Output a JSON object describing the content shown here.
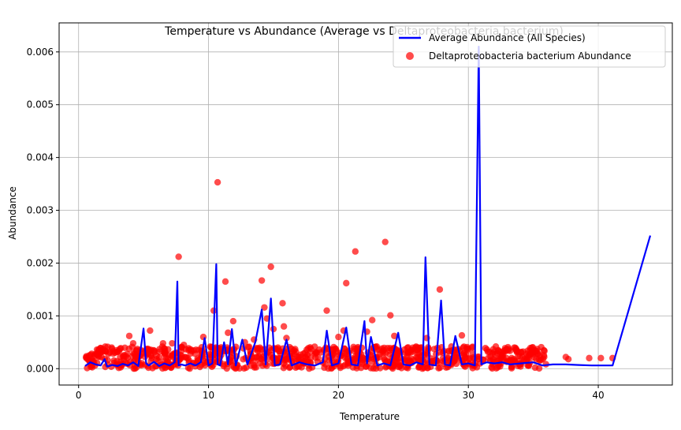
{
  "chart_data": {
    "type": "line+scatter",
    "title": "Temperature vs Abundance (Average vs Deltaproteobacteria bacterium)",
    "xlabel": "Temperature",
    "ylabel": "Abundance",
    "xlim": [
      -1.5,
      45.7
    ],
    "ylim": [
      -0.00031,
      0.00655
    ],
    "xticks": [
      0,
      10,
      20,
      30,
      40
    ],
    "yticks": [
      0.0,
      0.001,
      0.002,
      0.003,
      0.004,
      0.005,
      0.006
    ],
    "ytick_labels": [
      "0.000",
      "0.001",
      "0.002",
      "0.003",
      "0.004",
      "0.005",
      "0.006"
    ],
    "grid": true,
    "legend_position": "top-right",
    "colors": {
      "line": "#0000ff",
      "scatter": "#ff0000",
      "grid": "#b0b0b0"
    },
    "series": [
      {
        "name": "Average Abundance (All Species)",
        "kind": "line",
        "x": [
          0.5,
          0.9,
          1.3,
          1.7,
          2.0,
          2.2,
          2.6,
          3.0,
          3.4,
          3.8,
          4.2,
          4.6,
          5.0,
          5.2,
          5.4,
          5.8,
          6.2,
          6.6,
          7.0,
          7.4,
          7.6,
          7.7,
          7.9,
          8.2,
          8.6,
          9.0,
          9.4,
          9.7,
          10.0,
          10.3,
          10.6,
          10.7,
          10.9,
          11.2,
          11.5,
          11.8,
          12.1,
          12.6,
          13.0,
          13.6,
          14.1,
          14.4,
          14.8,
          15.1,
          15.5,
          16.0,
          16.4,
          17.0,
          17.6,
          18.2,
          18.8,
          19.1,
          19.5,
          20.0,
          20.6,
          21.0,
          21.5,
          22.0,
          22.2,
          22.5,
          23.0,
          23.5,
          24.0,
          24.6,
          25.0,
          25.5,
          26.0,
          26.5,
          26.7,
          27.0,
          27.5,
          27.9,
          28.2,
          28.6,
          29.0,
          29.5,
          30.0,
          30.5,
          30.8,
          31.0,
          31.4,
          32.0,
          32.6,
          33.2,
          34.0,
          35.0,
          35.7,
          36.5,
          37.5,
          38.5,
          39.5,
          41.1,
          44.0
        ],
        "y": [
          5e-05,
          0.00012,
          8e-05,
          6e-05,
          0.00018,
          4e-05,
          7e-05,
          5e-05,
          9e-05,
          6e-05,
          0.00012,
          5e-05,
          0.00076,
          0.0001,
          6e-05,
          0.00013,
          5e-05,
          0.0001,
          6e-05,
          0.00012,
          0.00165,
          6e-05,
          8e-05,
          6e-05,
          0.0001,
          6e-05,
          0.00012,
          0.00058,
          6e-05,
          0.0001,
          0.00198,
          8e-05,
          6e-05,
          0.0005,
          8e-05,
          0.00075,
          6e-05,
          0.00055,
          8e-05,
          0.0005,
          0.00112,
          8e-05,
          0.00133,
          6e-05,
          8e-05,
          0.00055,
          6e-05,
          0.00012,
          8e-05,
          6e-05,
          0.00012,
          0.00072,
          6e-05,
          0.0001,
          0.00078,
          8e-05,
          6e-05,
          0.0009,
          0.0001,
          0.0006,
          6e-05,
          0.0001,
          6e-05,
          0.00068,
          8e-05,
          6e-05,
          0.00012,
          8e-05,
          0.00211,
          8e-05,
          6e-05,
          0.00129,
          8e-05,
          6e-05,
          0.00062,
          8e-05,
          0.0001,
          6e-05,
          0.0061,
          8e-05,
          0.00012,
          0.0001,
          0.00012,
          8e-05,
          0.0001,
          0.00012,
          6e-05,
          8e-05,
          8e-05,
          7e-05,
          6e-05,
          6e-05,
          0.00252
        ]
      },
      {
        "name": "Deltaproteobacteria bacterium Abundance",
        "kind": "scatter",
        "points": [
          [
            0.6,
            0.0002
          ],
          [
            1.0,
            0.00018
          ],
          [
            1.5,
            0.00033
          ],
          [
            2.3,
            0.00028
          ],
          [
            3.0,
            0.00032
          ],
          [
            3.9,
            0.00062
          ],
          [
            4.2,
            0.00048
          ],
          [
            5.5,
            0.00072
          ],
          [
            6.5,
            0.00048
          ],
          [
            7.2,
            0.00048
          ],
          [
            7.7,
            0.00212
          ],
          [
            8.1,
            0.00045
          ],
          [
            9.6,
            0.0006
          ],
          [
            10.4,
            0.0011
          ],
          [
            10.7,
            0.00353
          ],
          [
            11.3,
            0.00165
          ],
          [
            11.5,
            0.00068
          ],
          [
            11.9,
            0.0009
          ],
          [
            12.8,
            0.0005
          ],
          [
            13.5,
            0.00055
          ],
          [
            14.1,
            0.00167
          ],
          [
            14.3,
            0.00116
          ],
          [
            14.5,
            0.00095
          ],
          [
            14.8,
            0.00193
          ],
          [
            15.0,
            0.00075
          ],
          [
            15.7,
            0.00124
          ],
          [
            15.8,
            0.0008
          ],
          [
            16.0,
            0.00058
          ],
          [
            19.1,
            0.0011
          ],
          [
            20.0,
            0.0006
          ],
          [
            20.4,
            0.00072
          ],
          [
            20.6,
            0.00162
          ],
          [
            21.3,
            0.00222
          ],
          [
            22.2,
            0.0007
          ],
          [
            22.6,
            0.00092
          ],
          [
            23.6,
            0.0024
          ],
          [
            24.0,
            0.00101
          ],
          [
            24.3,
            0.00062
          ],
          [
            26.1,
            0.0004
          ],
          [
            26.8,
            0.00058
          ],
          [
            27.8,
            0.0015
          ],
          [
            29.5,
            0.00063
          ],
          [
            30.3,
            0.0004
          ],
          [
            31.5,
            0.00032
          ],
          [
            33.5,
            0.00018
          ],
          [
            35.5,
            0.00025
          ],
          [
            37.5,
            0.00022
          ],
          [
            37.7,
            0.00018
          ],
          [
            39.3,
            0.0002
          ],
          [
            40.2,
            0.0002
          ],
          [
            41.1,
            0.0002
          ]
        ],
        "dense_band": {
          "x_range": [
            0.5,
            36.0
          ],
          "y_range": [
            0.0,
            0.00042
          ]
        }
      }
    ]
  }
}
